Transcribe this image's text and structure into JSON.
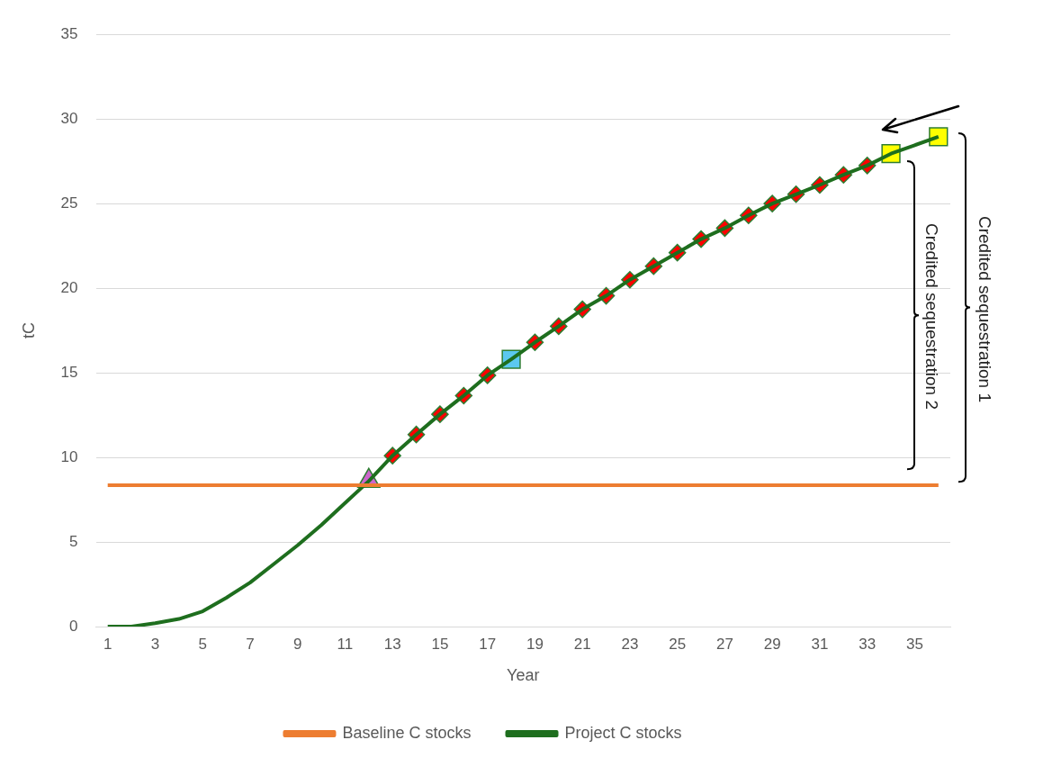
{
  "chart_data": {
    "type": "line",
    "xlabel": "Year",
    "ylabel": "tC",
    "x": [
      1,
      2,
      3,
      4,
      5,
      6,
      7,
      8,
      9,
      10,
      11,
      12,
      13,
      14,
      15,
      16,
      17,
      18,
      19,
      20,
      21,
      22,
      23,
      24,
      25,
      26,
      27,
      28,
      29,
      30,
      31,
      32,
      33,
      34,
      35,
      36
    ],
    "xlim": [
      0.5,
      36.5
    ],
    "xticks": [
      1,
      3,
      5,
      7,
      9,
      11,
      13,
      15,
      17,
      19,
      21,
      23,
      25,
      27,
      29,
      31,
      33,
      35
    ],
    "series": [
      {
        "name": "Baseline C stocks",
        "color": "#ed7d31",
        "marker": "none",
        "values": [
          8.35,
          8.35,
          8.35,
          8.35,
          8.35,
          8.35,
          8.35,
          8.35,
          8.35,
          8.35,
          8.35,
          8.35,
          8.35,
          8.35,
          8.35,
          8.35,
          8.35,
          8.35,
          8.35,
          8.35,
          8.35,
          8.35,
          8.35,
          8.35,
          8.35,
          8.35,
          8.35,
          8.35,
          8.35,
          8.35,
          8.35,
          8.35,
          8.35,
          8.35,
          8.35,
          8.35
        ]
      },
      {
        "name": "Project C stocks",
        "color": "#1e6e1e",
        "marker": "none",
        "values": [
          0,
          0,
          0.2,
          0.45,
          0.9,
          1.7,
          2.6,
          3.7,
          4.8,
          6.0,
          7.3,
          8.6,
          10.1,
          11.35,
          12.55,
          13.65,
          14.85,
          15.8,
          16.8,
          17.75,
          18.75,
          19.55,
          20.5,
          21.3,
          22.1,
          22.9,
          23.55,
          24.3,
          25.0,
          25.55,
          26.1,
          26.7,
          27.25,
          27.95,
          28.45,
          28.95
        ]
      },
      {
        "type": "scatter",
        "color": "#cc66cc",
        "marker": "triangle",
        "values": [
          null,
          null,
          null,
          null,
          null,
          null,
          null,
          null,
          null,
          null,
          null,
          8.6,
          null,
          null,
          null,
          null,
          null,
          null,
          null,
          null,
          null,
          null,
          null,
          null,
          null,
          null,
          null,
          null,
          null,
          null,
          null,
          null,
          null,
          null,
          null,
          null
        ]
      },
      {
        "type": "scatter",
        "color": "#ff0000",
        "marker": "diamond",
        "values": [
          null,
          null,
          null,
          null,
          null,
          null,
          null,
          null,
          null,
          null,
          null,
          null,
          10.1,
          11.35,
          12.55,
          13.65,
          14.85,
          null,
          16.8,
          17.75,
          18.75,
          19.55,
          20.5,
          21.3,
          22.1,
          22.9,
          23.55,
          24.3,
          25.0,
          25.55,
          26.1,
          26.7,
          27.25,
          null,
          null,
          null
        ]
      },
      {
        "type": "scatter",
        "color": "#5bc8ef",
        "marker": "square",
        "values": [
          null,
          null,
          null,
          null,
          null,
          null,
          null,
          null,
          null,
          null,
          null,
          null,
          null,
          null,
          null,
          null,
          null,
          15.8,
          null,
          null,
          null,
          null,
          null,
          null,
          null,
          null,
          null,
          null,
          null,
          null,
          null,
          null,
          null,
          null,
          null,
          null
        ]
      },
      {
        "type": "scatter",
        "color": "#ffff00",
        "marker": "square",
        "values": [
          null,
          null,
          null,
          null,
          null,
          null,
          null,
          null,
          null,
          null,
          null,
          null,
          null,
          null,
          null,
          null,
          null,
          null,
          null,
          null,
          null,
          null,
          null,
          null,
          null,
          null,
          null,
          null,
          null,
          null,
          null,
          null,
          null,
          27.95,
          null,
          28.95
        ]
      }
    ],
    "ylim": [
      0,
      35
    ],
    "yticks": [
      0,
      5,
      10,
      15,
      20,
      25,
      30,
      35
    ],
    "grid": "y",
    "legend": "bottom",
    "annotations": [
      "Credited sequestration 1",
      "Credited sequestration 2"
    ]
  }
}
